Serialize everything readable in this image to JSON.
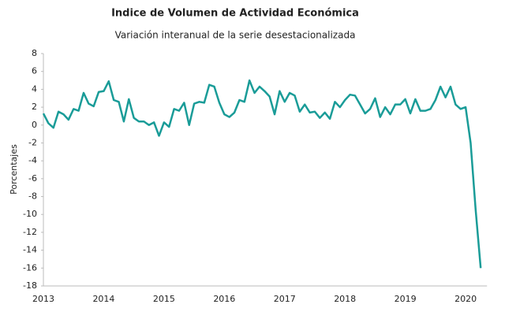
{
  "chart_data": {
    "type": "line",
    "title": "Indice de Volumen de  Actividad Económica",
    "subtitle": "Variación interanual de la serie desestacionalizada",
    "y_label": "Porcentajes",
    "categories": [
      "2013",
      null,
      null,
      null,
      null,
      null,
      null,
      null,
      null,
      null,
      null,
      null,
      "2014",
      null,
      null,
      null,
      null,
      null,
      null,
      null,
      null,
      null,
      null,
      null,
      "2015",
      null,
      null,
      null,
      null,
      null,
      null,
      null,
      null,
      null,
      null,
      null,
      "2016",
      null,
      null,
      null,
      null,
      null,
      null,
      null,
      null,
      null,
      null,
      null,
      "2017",
      null,
      null,
      null,
      null,
      null,
      null,
      null,
      null,
      null,
      null,
      null,
      "2018",
      null,
      null,
      null,
      null,
      null,
      null,
      null,
      null,
      null,
      null,
      null,
      "2019",
      null,
      null,
      null,
      null,
      null,
      null,
      null,
      null,
      null,
      null,
      null,
      "2020",
      null,
      null,
      null
    ],
    "series": [
      {
        "name": "Variación interanual",
        "color": "#1a9c98",
        "values": [
          1.3,
          0.2,
          -0.3,
          1.5,
          1.2,
          0.6,
          1.8,
          1.6,
          3.6,
          2.4,
          2.1,
          3.7,
          3.8,
          4.9,
          2.8,
          2.6,
          0.4,
          2.9,
          0.8,
          0.4,
          0.4,
          0,
          0.3,
          -1.2,
          0.3,
          -0.2,
          1.8,
          1.6,
          2.5,
          0.0,
          2.4,
          2.6,
          2.5,
          4.5,
          4.3,
          2.5,
          1.2,
          0.9,
          1.4,
          2.8,
          2.6,
          5.0,
          3.6,
          4.3,
          3.8,
          3.2,
          1.2,
          3.8,
          2.6,
          3.6,
          3.3,
          1.5,
          2.3,
          1.4,
          1.5,
          0.8,
          1.4,
          0.7,
          2.6,
          2.0,
          2.8,
          3.4,
          3.3,
          2.3,
          1.3,
          1.8,
          3.0,
          0.9,
          2.0,
          1.2,
          2.3,
          2.3,
          2.9,
          1.3,
          2.9,
          1.6,
          1.6,
          1.8,
          2.8,
          4.3,
          3.1,
          4.3,
          2.3,
          1.8,
          2.0,
          -2.0,
          -9.5,
          -16.0
        ]
      }
    ],
    "ylim": [
      -18,
      8
    ],
    "yticks": [
      -18,
      -16,
      -14,
      -12,
      -10,
      -8,
      -6,
      -4,
      -2,
      0,
      2,
      4,
      6,
      8
    ],
    "grid": false
  }
}
